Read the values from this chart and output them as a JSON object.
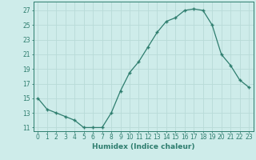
{
  "x": [
    0,
    1,
    2,
    3,
    4,
    5,
    6,
    7,
    8,
    9,
    10,
    11,
    12,
    13,
    14,
    15,
    16,
    17,
    18,
    19,
    20,
    21,
    22,
    23
  ],
  "y": [
    15,
    13.5,
    13,
    12.5,
    12,
    11,
    11,
    11,
    13,
    16,
    18.5,
    20,
    22,
    24,
    25.5,
    26,
    27,
    27.2,
    27,
    25,
    21,
    19.5,
    17.5,
    16.5
  ],
  "line_color": "#2e7d6e",
  "marker_color": "#2e7d6e",
  "bg_color": "#ceecea",
  "grid_color": "#b8dbd8",
  "xlabel": "Humidex (Indice chaleur)",
  "ylabel_ticks": [
    11,
    13,
    15,
    17,
    19,
    21,
    23,
    25,
    27
  ],
  "xlim": [
    -0.5,
    23.5
  ],
  "ylim": [
    10.5,
    28.2
  ],
  "xtick_labels": [
    "0",
    "1",
    "2",
    "3",
    "4",
    "5",
    "6",
    "7",
    "8",
    "9",
    "10",
    "11",
    "12",
    "13",
    "14",
    "15",
    "16",
    "17",
    "18",
    "19",
    "20",
    "21",
    "22",
    "23"
  ],
  "font_color": "#2e7d6e",
  "label_fontsize": 6.5,
  "tick_fontsize": 5.5
}
